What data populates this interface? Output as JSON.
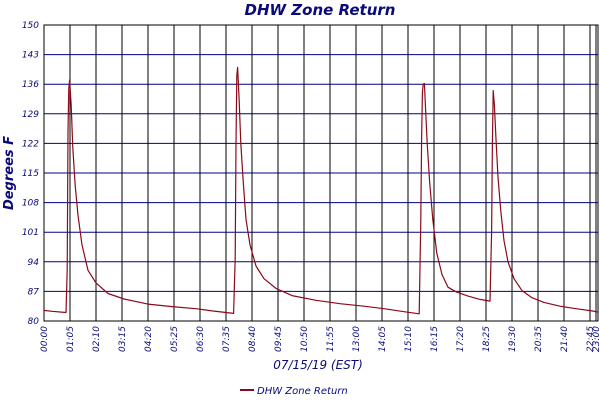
{
  "chart_data": {
    "type": "line",
    "title": "DHW Zone Return",
    "xlabel": "07/15/19 (EST)",
    "ylabel": "Degrees F",
    "ylim": [
      80,
      150
    ],
    "y_ticks": [
      "80",
      "87",
      "94",
      "101",
      "108",
      "115",
      "122",
      "129",
      "136",
      "143",
      "150"
    ],
    "x_ticks": [
      "00:00",
      "01:05",
      "02:10",
      "03:15",
      "04:20",
      "05:25",
      "06:30",
      "07:35",
      "08:40",
      "09:45",
      "10:50",
      "11:55",
      "13:00",
      "14:05",
      "15:10",
      "16:15",
      "17:20",
      "18:25",
      "19:30",
      "20:35",
      "21:40",
      "22:45",
      "23:00"
    ],
    "x_tick_minutes": [
      0,
      65,
      130,
      195,
      260,
      325,
      390,
      455,
      520,
      585,
      650,
      715,
      780,
      845,
      910,
      975,
      1040,
      1105,
      1170,
      1235,
      1300,
      1365,
      1380
    ],
    "xlim_minutes": [
      0,
      1385
    ],
    "grid": true,
    "legend_position": "bottom-left",
    "series": [
      {
        "name": "DHW Zone Return",
        "color": "#8b0a1a",
        "x_minutes": [
          0,
          20,
          55,
          58,
          60,
          62,
          64,
          68,
          72,
          78,
          85,
          95,
          110,
          130,
          160,
          200,
          260,
          320,
          380,
          420,
          455,
          474,
          478,
          480,
          482,
          484,
          488,
          492,
          498,
          505,
          515,
          530,
          550,
          580,
          620,
          680,
          740,
          800,
          850,
          900,
          938,
          942,
          944,
          946,
          948,
          951,
          954,
          958,
          964,
          972,
          982,
          995,
          1010,
          1030,
          1060,
          1090,
          1115,
          1119,
          1121,
          1123,
          1126,
          1130,
          1135,
          1142,
          1150,
          1160,
          1175,
          1195,
          1220,
          1250,
          1290,
          1330,
          1370,
          1385
        ],
        "values": [
          82.5,
          82.3,
          82,
          92,
          125,
          135,
          137,
          131,
          121,
          112,
          105,
          98,
          92,
          89,
          86.5,
          85.2,
          84,
          83.4,
          82.9,
          82.4,
          82,
          81.8,
          95,
          122,
          138,
          140,
          132,
          122,
          113,
          104,
          98,
          93,
          90,
          87.7,
          86,
          84.9,
          84.1,
          83.5,
          82.9,
          82.2,
          81.7,
          104,
          123,
          134,
          136,
          136.2,
          130,
          122,
          113,
          104,
          96,
          91,
          88,
          86.9,
          85.9,
          85.1,
          84.7,
          101,
          122,
          134.5,
          131,
          123,
          114,
          106,
          99,
          94,
          90,
          87.2,
          85.5,
          84.4,
          83.5,
          82.9,
          82.4,
          82.1
        ]
      }
    ]
  }
}
